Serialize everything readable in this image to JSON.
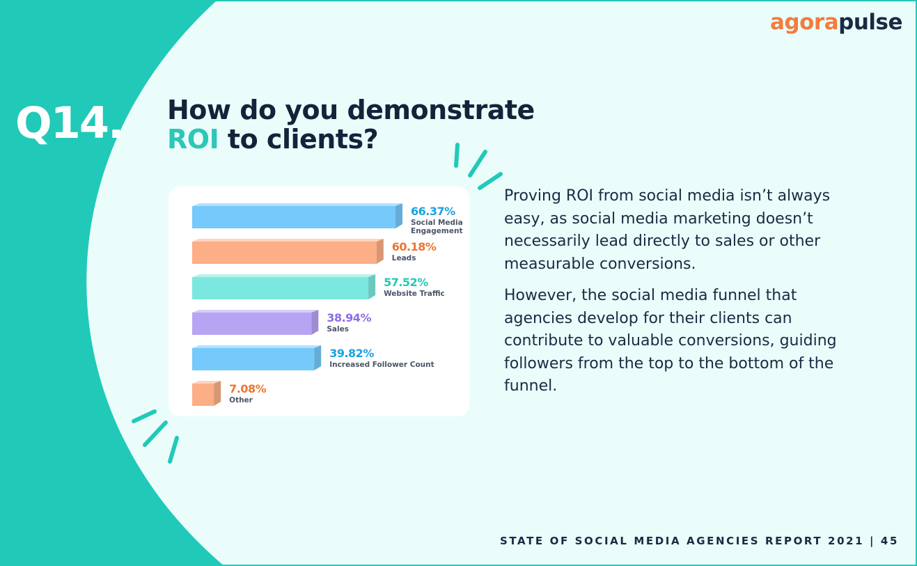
{
  "brand": {
    "logo_part1": "agora",
    "logo_part2": "pulse",
    "logo_color1": "#f47c3c",
    "logo_color2": "#1b2a42"
  },
  "question_number": "Q14.",
  "title": {
    "line1": "How do you demonstrate",
    "accent": "ROI",
    "line2_rest": " to clients?"
  },
  "paragraphs": [
    "Proving ROI from social media isn’t always easy, as social media marketing doesn’t necessarily lead directly to sales or other measurable conversions.",
    "However, the social media funnel that agencies develop for their clients can contribute to valuable conversions, guiding followers from the top to the bottom of the funnel."
  ],
  "footer": "STATE OF SOCIAL MEDIA AGENCIES REPORT 2021 | 45",
  "colors": {
    "teal": "#21c9b8",
    "background": "#eafdfb",
    "blue": "#75c9fb",
    "orange": "#fcae86",
    "mint": "#7be8df",
    "purple": "#b7a4f2"
  },
  "chart_data": {
    "type": "bar",
    "orientation": "horizontal",
    "xlim": [
      0,
      100
    ],
    "categories": [
      "Social Media Engagement",
      "Leads",
      "Website Traffic",
      "Sales",
      "Increased Follower Count",
      "Other"
    ],
    "label_lines": [
      [
        "Social Media",
        "Engagement"
      ],
      [
        "Leads"
      ],
      [
        "Website Traffic"
      ],
      [
        "Sales"
      ],
      [
        "Increased Follower Count"
      ],
      [
        "Other"
      ]
    ],
    "values": [
      66.37,
      60.18,
      57.52,
      38.94,
      39.82,
      7.08
    ],
    "value_labels": [
      "66.37%",
      "60.18%",
      "57.52%",
      "38.94%",
      "39.82%",
      "7.08%"
    ],
    "bar_colors": [
      "#75c9fb",
      "#fcae86",
      "#7be8df",
      "#b7a4f2",
      "#75c9fb",
      "#fcae86"
    ],
    "label_colors": [
      "#1ba1e2",
      "#f07432",
      "#22c9b6",
      "#8a6ee6",
      "#1ba1e2",
      "#f07432"
    ]
  }
}
